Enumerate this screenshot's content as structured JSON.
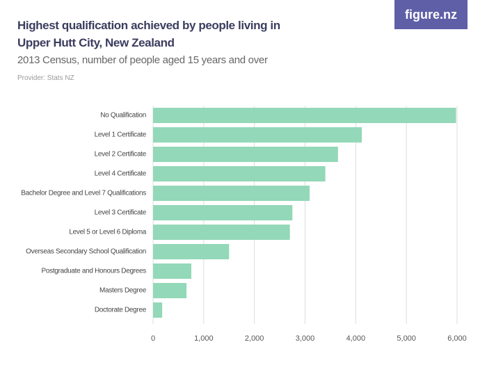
{
  "chart_data": {
    "type": "barh",
    "title": "Highest qualification achieved by people living in Upper Hutt City, New Zealand",
    "subtitle": "2013 Census, number of people aged 15 years and over",
    "provider": "Provider: Stats NZ",
    "logo": "figure.nz",
    "categories": [
      "No Qualification",
      "Level 1 Certificate",
      "Level 2 Certificate",
      "Level 4 Certificate",
      "Bachelor Degree and Level 7 Qualifications",
      "Level 3 Certificate",
      "Level 5 or Level 6 Diploma",
      "Overseas Secondary School Qualification",
      "Postgraduate and Honours Degrees",
      "Masters Degree",
      "Doctorate Degree"
    ],
    "values": [
      5980,
      4120,
      3650,
      3400,
      3090,
      2750,
      2700,
      1500,
      755,
      660,
      180
    ],
    "color": "#93d8b8",
    "xlim": [
      0,
      6000
    ],
    "xticks": [
      0,
      {
        "value": 1000,
        "label": "1,000"
      },
      {
        "value": 2000,
        "label": "2,000"
      },
      {
        "value": 3000,
        "label": "3,000"
      },
      {
        "value": 4000,
        "label": "4,000"
      },
      {
        "value": 5000,
        "label": "5,000"
      },
      {
        "value": 6000,
        "label": "6,000"
      }
    ],
    "grid": true
  }
}
